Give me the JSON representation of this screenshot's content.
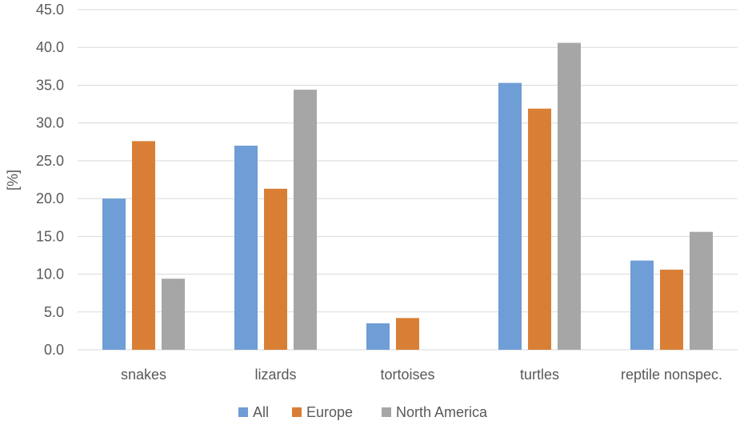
{
  "chart_data": {
    "type": "bar",
    "categories": [
      "snakes",
      "lizards",
      "tortoises",
      "turtles",
      "reptile nonspec."
    ],
    "series": [
      {
        "name": "All",
        "color": "#6f9dd6",
        "values": [
          20.0,
          27.0,
          3.5,
          35.3,
          11.8
        ]
      },
      {
        "name": "Europe",
        "color": "#d97f35",
        "values": [
          27.6,
          21.3,
          4.2,
          31.9,
          10.6
        ]
      },
      {
        "name": "North America",
        "color": "#a6a6a6",
        "values": [
          9.4,
          34.4,
          0.0,
          40.6,
          15.6
        ]
      }
    ],
    "xlabel": "",
    "ylabel": "[%]",
    "ylim": [
      0,
      45
    ],
    "y_ticks": [
      "0.0",
      "5.0",
      "10.0",
      "15.0",
      "20.0",
      "25.0",
      "30.0",
      "35.0",
      "40.0",
      "45.0"
    ],
    "grid": true,
    "legend": "bottom-center",
    "gridline_color": "#d9d9d9"
  }
}
